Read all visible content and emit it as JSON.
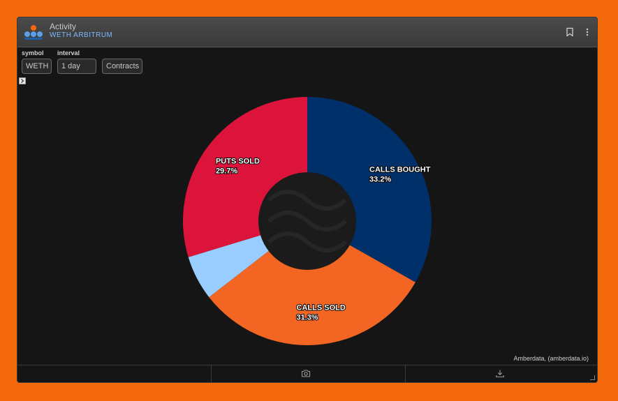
{
  "header": {
    "title": "Activity",
    "subtitle": "WETH ARBITRUM",
    "bookmark_icon": "bookmark-icon",
    "menu_icon": "more-vertical-icon"
  },
  "controls": {
    "symbol_label": "symbol",
    "symbol_value": "WETH",
    "interval_label": "interval",
    "interval_value": "1 day",
    "contracts_label": "Contracts"
  },
  "colors": {
    "accent": "#f4690c",
    "calls_bought": "#00306a",
    "calls_sold": "#f26522",
    "puts_bought": "#99ccff",
    "puts_sold": "#dc143c",
    "background": "#151515"
  },
  "chart_data": {
    "type": "pie",
    "donut": true,
    "slices": [
      {
        "label": "CALLS BOUGHT",
        "value": 33.2,
        "value_label": "33.2%",
        "color": "#00306a",
        "labeled": true
      },
      {
        "label": "CALLS SOLD",
        "value": 31.3,
        "value_label": "31.3%",
        "color": "#f26522",
        "labeled": true
      },
      {
        "label": "",
        "value": 5.8,
        "value_label": "",
        "color": "#99ccff",
        "labeled": false
      },
      {
        "label": "PUTS SOLD",
        "value": 29.7,
        "value_label": "29.7%",
        "color": "#dc143c",
        "labeled": true
      }
    ]
  },
  "credit": "Amberdata, (amberdata.io)",
  "footer": {
    "camera_icon": "camera-icon",
    "download_icon": "download-icon"
  }
}
